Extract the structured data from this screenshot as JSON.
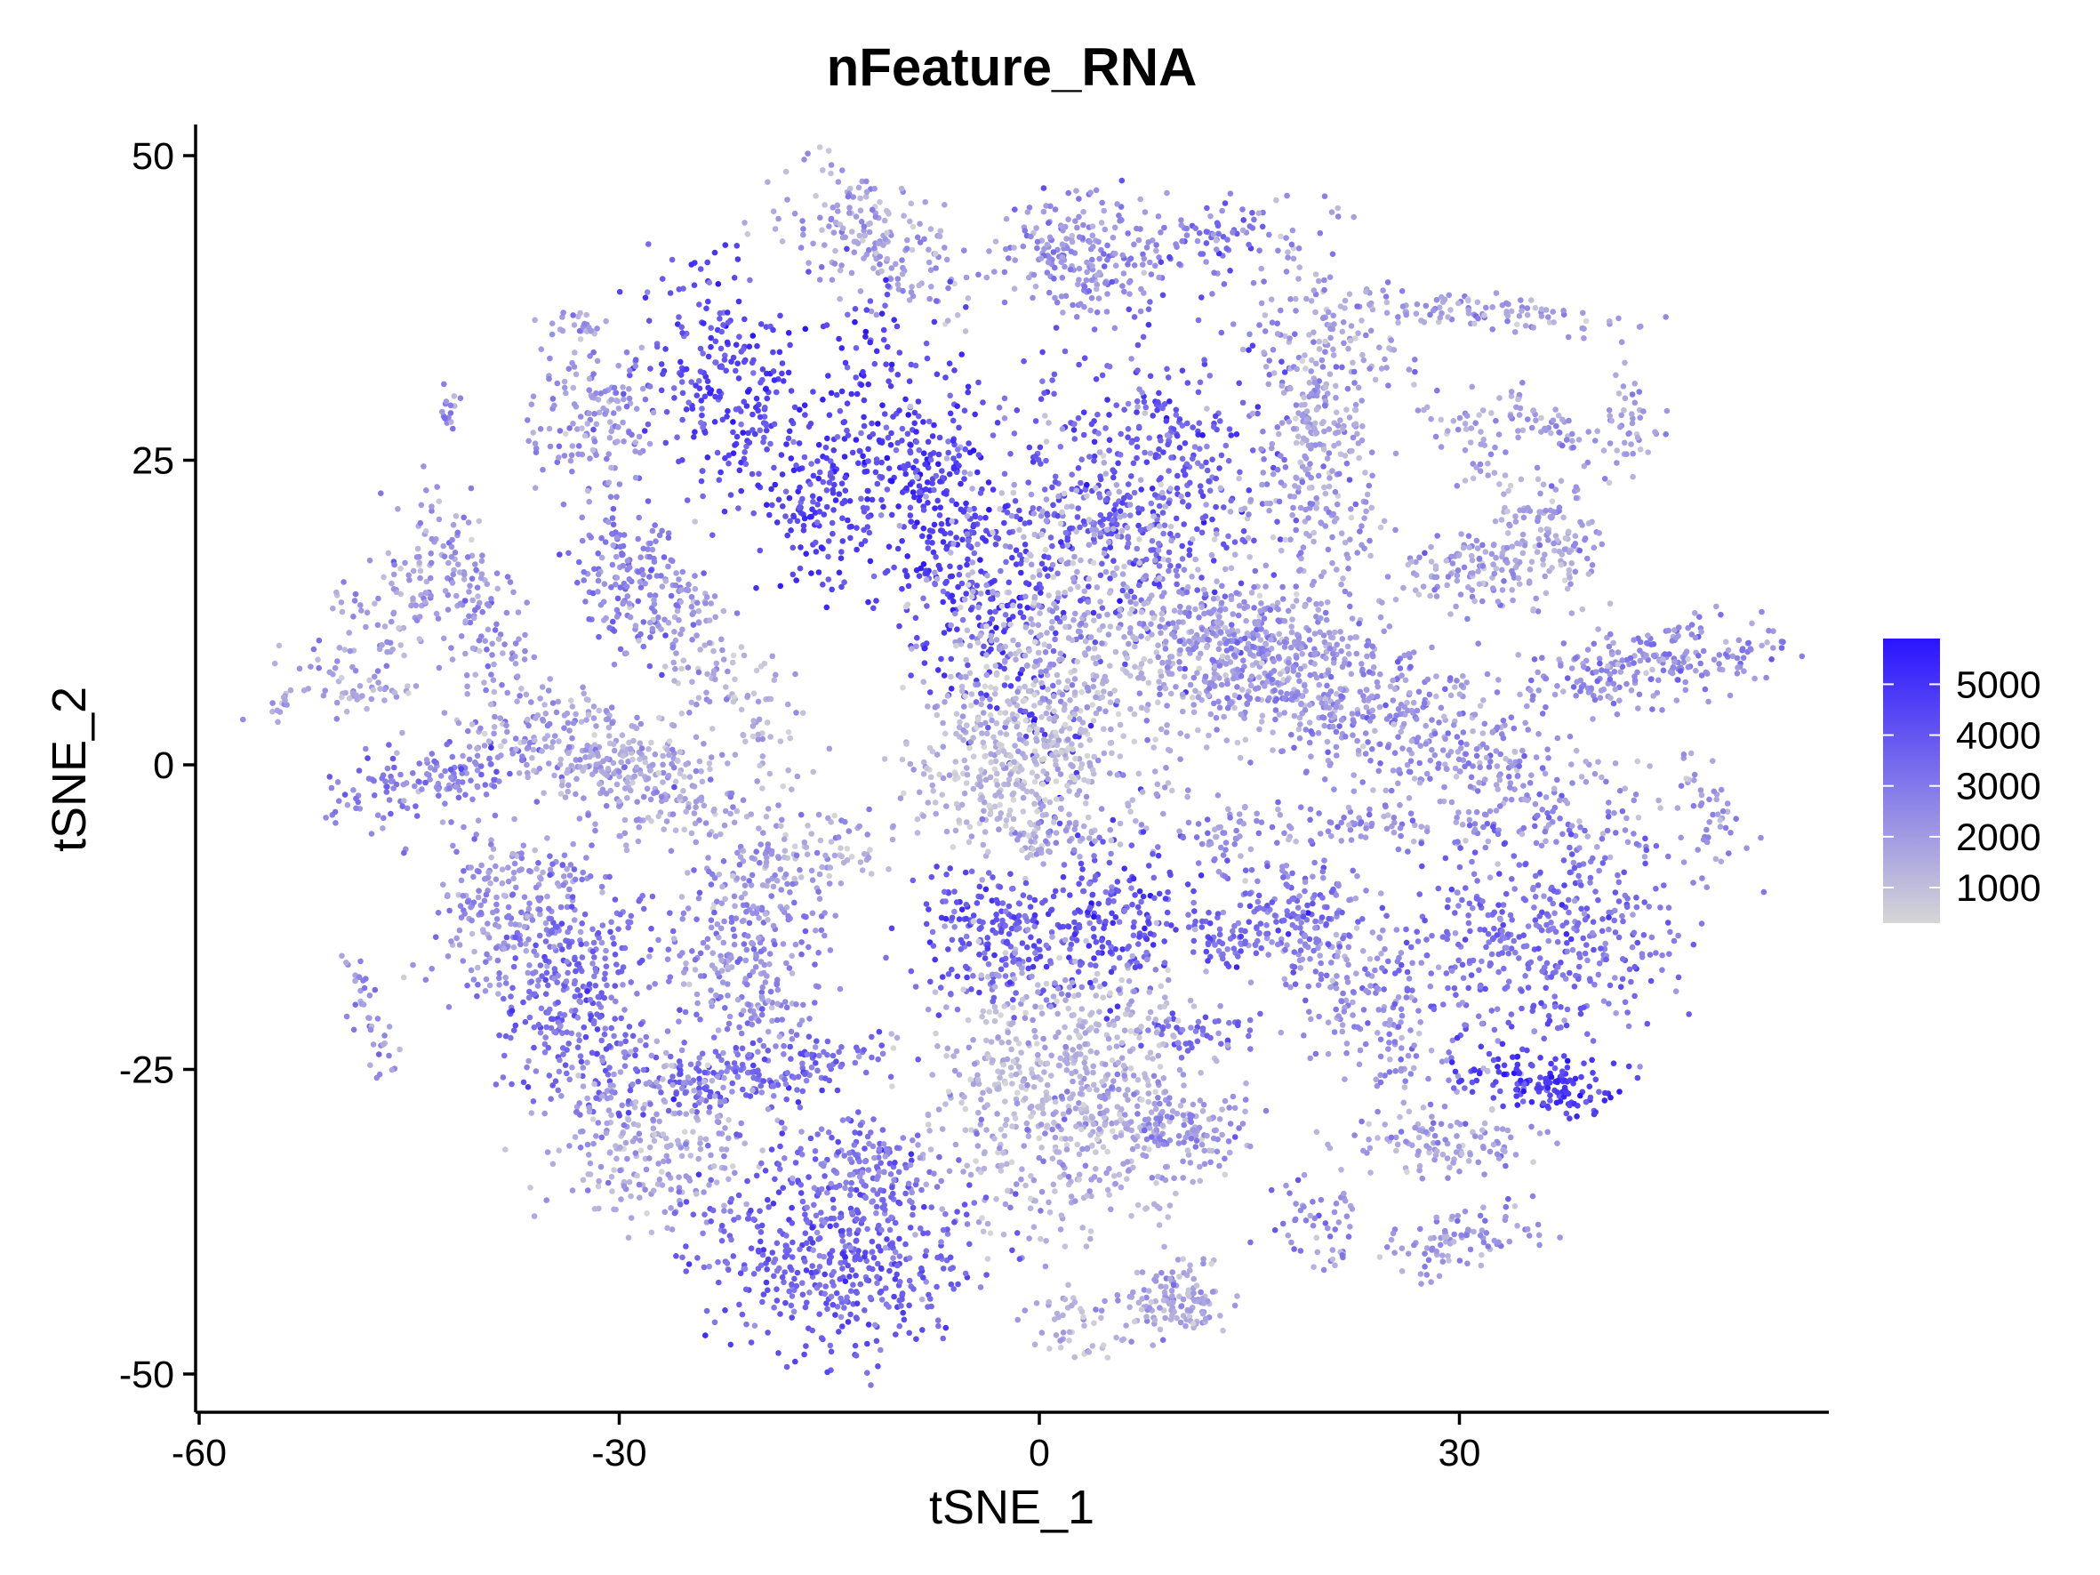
{
  "chart_data": {
    "type": "scatter",
    "title": "nFeature_RNA",
    "xlabel": "tSNE_1",
    "ylabel": "tSNE_2",
    "xlim": [
      -60,
      56
    ],
    "ylim": [
      -54,
      52
    ],
    "xticks": [
      -60,
      -30,
      0,
      30
    ],
    "xtick_labels": [
      "-60",
      "-30",
      "0",
      "30"
    ],
    "yticks": [
      50,
      25,
      0,
      -25,
      -50
    ],
    "ytick_labels": [
      "50",
      "25",
      "0",
      "-25",
      "-50"
    ],
    "grid": false,
    "legend": {
      "position": "right",
      "type": "colorbar",
      "range": [
        300,
        5900
      ],
      "ticks": [
        1000,
        2000,
        3000,
        4000,
        5000
      ],
      "tick_labels": [
        "1000",
        "2000",
        "3000",
        "4000",
        "5000"
      ],
      "low_color": "#d6d6d6",
      "high_color": "#2a14ff"
    },
    "point_color_low": "#d6d6d6",
    "point_color_high": "#2a14ff",
    "clusters": [
      {
        "x": -12,
        "y": 43,
        "sx": 4.2,
        "sy": 2.2,
        "angle": -35,
        "n": 190,
        "mean": 1800
      },
      {
        "x": 3,
        "y": 42,
        "sx": 2.8,
        "sy": 2.4,
        "angle": 0,
        "n": 220,
        "mean": 2300
      },
      {
        "x": 12,
        "y": 43,
        "sx": 2.0,
        "sy": 1.5,
        "angle": 20,
        "n": 70,
        "mean": 3000
      },
      {
        "x": 32,
        "y": 37,
        "sx": 5.5,
        "sy": 0.8,
        "angle": -5,
        "n": 110,
        "mean": 1900
      },
      {
        "x": -22,
        "y": 32,
        "sx": 2.8,
        "sy": 5.0,
        "angle": 10,
        "n": 260,
        "mean": 4300
      },
      {
        "x": -15,
        "y": 22,
        "sx": 2.6,
        "sy": 4.0,
        "angle": 0,
        "n": 190,
        "mean": 4500
      },
      {
        "x": -6,
        "y": 19,
        "sx": 2.6,
        "sy": 9.5,
        "angle": 18,
        "n": 500,
        "mean": 4600
      },
      {
        "x": 7,
        "y": 22,
        "sx": 4.5,
        "sy": 6.5,
        "angle": 0,
        "n": 520,
        "mean": 3900
      },
      {
        "x": 4,
        "y": 10,
        "sx": 6.0,
        "sy": 7.5,
        "angle": 0,
        "n": 650,
        "mean": 1500
      },
      {
        "x": -2,
        "y": 0,
        "sx": 3.5,
        "sy": 3.8,
        "angle": 0,
        "n": 330,
        "mean": 1100
      },
      {
        "x": -32,
        "y": 28,
        "sx": 2.2,
        "sy": 2.8,
        "angle": 0,
        "n": 150,
        "mean": 2200
      },
      {
        "x": -29,
        "y": 15,
        "sx": 2.2,
        "sy": 3.2,
        "angle": 0,
        "n": 170,
        "mean": 2800
      },
      {
        "x": -46,
        "y": 13,
        "sx": 2.0,
        "sy": 5.5,
        "angle": -40,
        "n": 130,
        "mean": 2000
      },
      {
        "x": -40,
        "y": 12,
        "sx": 1.6,
        "sy": 5.5,
        "angle": 20,
        "n": 130,
        "mean": 2300
      },
      {
        "x": -43,
        "y": -1,
        "sx": 3.8,
        "sy": 1.5,
        "angle": 15,
        "n": 160,
        "mean": 2800
      },
      {
        "x": -30,
        "y": 0,
        "sx": 6.0,
        "sy": 2.3,
        "angle": -28,
        "n": 380,
        "mean": 1700
      },
      {
        "x": -22,
        "y": 6,
        "sx": 2.0,
        "sy": 4.5,
        "angle": 30,
        "n": 110,
        "mean": 1500
      },
      {
        "x": -17,
        "y": -8,
        "sx": 4.0,
        "sy": 1.5,
        "angle": 20,
        "n": 110,
        "mean": 1600
      },
      {
        "x": 20,
        "y": 27,
        "sx": 2.2,
        "sy": 8.5,
        "angle": 3,
        "n": 400,
        "mean": 1900
      },
      {
        "x": 16,
        "y": 9,
        "sx": 3.8,
        "sy": 2.5,
        "angle": -10,
        "n": 330,
        "mean": 2100
      },
      {
        "x": 26,
        "y": 3,
        "sx": 9.5,
        "sy": 2.8,
        "angle": -25,
        "n": 560,
        "mean": 2200
      },
      {
        "x": 31,
        "y": 26,
        "sx": 1.2,
        "sy": 7.0,
        "angle": 35,
        "n": 90,
        "mean": 1700
      },
      {
        "x": 32,
        "y": 16,
        "sx": 3.0,
        "sy": 1.6,
        "angle": 0,
        "n": 140,
        "mean": 1800
      },
      {
        "x": 37,
        "y": 19,
        "sx": 1.6,
        "sy": 2.2,
        "angle": 0,
        "n": 80,
        "mean": 1900
      },
      {
        "x": 36,
        "y": 28,
        "sx": 2.5,
        "sy": 0.8,
        "angle": -35,
        "n": 55,
        "mean": 1900
      },
      {
        "x": 42,
        "y": 28,
        "sx": 1.2,
        "sy": 2.0,
        "angle": 0,
        "n": 45,
        "mean": 2100
      },
      {
        "x": 43,
        "y": 8,
        "sx": 5.0,
        "sy": 1.6,
        "angle": 10,
        "n": 240,
        "mean": 2500
      },
      {
        "x": 48,
        "y": -4,
        "sx": 1.0,
        "sy": 3.0,
        "angle": 25,
        "n": 40,
        "mean": 2300
      },
      {
        "x": 24,
        "y": -5,
        "sx": 6.0,
        "sy": 0.8,
        "angle": 0,
        "n": 90,
        "mean": 2200
      },
      {
        "x": 36,
        "y": -14,
        "sx": 5.0,
        "sy": 4.5,
        "angle": 0,
        "n": 430,
        "mean": 3300
      },
      {
        "x": 23,
        "y": -18,
        "sx": 3.0,
        "sy": 6.0,
        "angle": 30,
        "n": 260,
        "mean": 2400
      },
      {
        "x": 18,
        "y": -13,
        "sx": 3.0,
        "sy": 2.0,
        "angle": 0,
        "n": 120,
        "mean": 3200
      },
      {
        "x": 36,
        "y": -26,
        "sx": 2.8,
        "sy": 1.2,
        "angle": -10,
        "n": 140,
        "mean": 4700
      },
      {
        "x": 28,
        "y": -31,
        "sx": 3.5,
        "sy": 1.3,
        "angle": 0,
        "n": 110,
        "mean": 1900
      },
      {
        "x": 30,
        "y": -39,
        "sx": 3.0,
        "sy": 1.2,
        "angle": 15,
        "n": 90,
        "mean": 2300
      },
      {
        "x": 20,
        "y": -38,
        "sx": 2.0,
        "sy": 2.0,
        "angle": 0,
        "n": 55,
        "mean": 2500
      },
      {
        "x": -3,
        "y": -14,
        "sx": 3.2,
        "sy": 2.8,
        "angle": 0,
        "n": 230,
        "mean": 3900
      },
      {
        "x": 6,
        "y": -12,
        "sx": 2.5,
        "sy": 3.6,
        "angle": 0,
        "n": 180,
        "mean": 4000
      },
      {
        "x": 13,
        "y": -15,
        "sx": 1.0,
        "sy": 1.2,
        "angle": 0,
        "n": 35,
        "mean": 3800
      },
      {
        "x": 11,
        "y": -22,
        "sx": 2.4,
        "sy": 1.0,
        "angle": 0,
        "n": 55,
        "mean": 3500
      },
      {
        "x": 13,
        "y": -6,
        "sx": 1.6,
        "sy": 1.6,
        "angle": 0,
        "n": 40,
        "mean": 2500
      },
      {
        "x": 1,
        "y": -6,
        "sx": 2.2,
        "sy": 1.2,
        "angle": 0,
        "n": 45,
        "mean": 2000
      },
      {
        "x": -38,
        "y": -12,
        "sx": 3.0,
        "sy": 3.5,
        "angle": 0,
        "n": 220,
        "mean": 2300
      },
      {
        "x": -33,
        "y": -19,
        "sx": 3.0,
        "sy": 5.0,
        "angle": 0,
        "n": 330,
        "mean": 3300
      },
      {
        "x": -21,
        "y": -16,
        "sx": 3.0,
        "sy": 4.5,
        "angle": 0,
        "n": 280,
        "mean": 2500
      },
      {
        "x": -20,
        "y": -25,
        "sx": 5.0,
        "sy": 1.5,
        "angle": 10,
        "n": 190,
        "mean": 3600
      },
      {
        "x": -28,
        "y": -31,
        "sx": 4.0,
        "sy": 3.5,
        "angle": -20,
        "n": 260,
        "mean": 1700
      },
      {
        "x": 2,
        "y": -27,
        "sx": 5.0,
        "sy": 5.5,
        "angle": 0,
        "n": 720,
        "mean": 1400
      },
      {
        "x": 10,
        "y": -30,
        "sx": 2.6,
        "sy": 1.6,
        "angle": 0,
        "n": 100,
        "mean": 2300
      },
      {
        "x": -14,
        "y": -40,
        "sx": 5.5,
        "sy": 4.5,
        "angle": 0,
        "n": 520,
        "mean": 3700
      },
      {
        "x": -12,
        "y": -33,
        "sx": 2.5,
        "sy": 2.2,
        "angle": 0,
        "n": 110,
        "mean": 3000
      },
      {
        "x": 10,
        "y": -44,
        "sx": 1.8,
        "sy": 1.5,
        "angle": 0,
        "n": 130,
        "mean": 1700
      },
      {
        "x": 3,
        "y": -46,
        "sx": 2.0,
        "sy": 1.3,
        "angle": 0,
        "n": 50,
        "mean": 1500
      },
      {
        "x": -48,
        "y": -20,
        "sx": 0.7,
        "sy": 3.0,
        "angle": 15,
        "n": 40,
        "mean": 2300
      },
      {
        "x": -48,
        "y": 6,
        "sx": 1.8,
        "sy": 0.6,
        "angle": 0,
        "n": 35,
        "mean": 1700
      },
      {
        "x": -42,
        "y": 29,
        "sx": 0.4,
        "sy": 1.5,
        "angle": 0,
        "n": 15,
        "mean": 2300
      },
      {
        "x": -54,
        "y": 5,
        "sx": 0.6,
        "sy": 0.6,
        "angle": 0,
        "n": 10,
        "mean": 1800
      },
      {
        "x": -33,
        "y": 36,
        "sx": 1.3,
        "sy": 0.8,
        "angle": 0,
        "n": 25,
        "mean": 2000
      },
      {
        "x": -25,
        "y": 13,
        "sx": 1.0,
        "sy": 2.0,
        "angle": 0,
        "n": 30,
        "mean": 2200
      }
    ]
  }
}
